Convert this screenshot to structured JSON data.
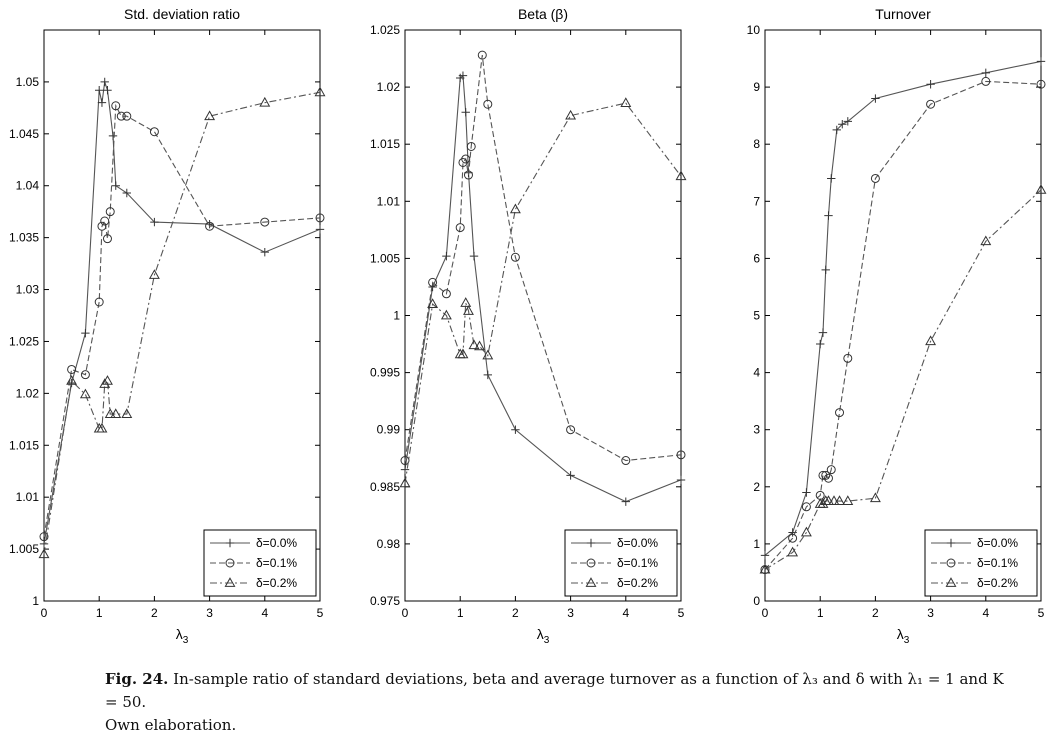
{
  "figure_label": "Fig. 24.",
  "caption_text": "In-sample ratio of standard deviations, beta and average turnover as a function of λ₃ and δ with λ₁ = 1 and K = 50.",
  "caption_note": "Own elaboration.",
  "chart_data": [
    {
      "type": "line",
      "title": "Std. deviation ratio",
      "xlabel": "λ3",
      "ylabel": "",
      "xlim": [
        0,
        5
      ],
      "ylim": [
        1,
        1.055
      ],
      "xticks": [
        0,
        1,
        2,
        3,
        4,
        5
      ],
      "xtick_labels": [
        "0",
        "1",
        "2",
        "3",
        "4",
        "5"
      ],
      "yticks": [
        1,
        1.005,
        1.01,
        1.015,
        1.02,
        1.025,
        1.03,
        1.035,
        1.04,
        1.045,
        1.05
      ],
      "ytick_labels": [
        "1",
        "1.005",
        "1.01",
        "1.015",
        "1.02",
        "1.025",
        "1.03",
        "1.035",
        "1.04",
        "1.045",
        "1.05"
      ],
      "grid": false,
      "legend_position": "bottom-right",
      "series": [
        {
          "name": "δ=0.0%",
          "style": "solid",
          "marker": "plus",
          "x": [
            0,
            0.5,
            0.75,
            1.0,
            1.05,
            1.1,
            1.15,
            1.25,
            1.3,
            1.5,
            2,
            3,
            4,
            5
          ],
          "y": [
            1.0055,
            1.021,
            1.0258,
            1.0492,
            1.048,
            1.05,
            1.0492,
            1.0448,
            1.04,
            1.0393,
            1.0365,
            1.0363,
            1.0336,
            1.0358
          ]
        },
        {
          "name": "δ=0.1%",
          "style": "dashed",
          "marker": "circle",
          "x": [
            0,
            0.5,
            0.75,
            1.0,
            1.05,
            1.1,
            1.15,
            1.2,
            1.3,
            1.4,
            1.5,
            2,
            3,
            4,
            5
          ],
          "y": [
            1.0062,
            1.0223,
            1.0218,
            1.0288,
            1.0361,
            1.0366,
            1.0349,
            1.0375,
            1.0477,
            1.0467,
            1.0467,
            1.0452,
            1.0361,
            1.0365,
            1.0369
          ]
        },
        {
          "name": "δ=0.2%",
          "style": "dashdot",
          "marker": "triangle",
          "x": [
            0,
            0.5,
            0.75,
            1.0,
            1.05,
            1.1,
            1.15,
            1.2,
            1.3,
            1.5,
            2,
            3,
            4,
            5
          ],
          "y": [
            1.0045,
            1.0212,
            1.0199,
            1.0166,
            1.0166,
            1.0209,
            1.0212,
            1.018,
            1.018,
            1.018,
            1.0314,
            1.0467,
            1.048,
            1.049
          ]
        }
      ]
    },
    {
      "type": "line",
      "title": "Beta (β)",
      "xlabel": "λ3",
      "ylabel": "",
      "xlim": [
        0,
        5
      ],
      "ylim": [
        0.975,
        1.025
      ],
      "xticks": [
        0,
        1,
        2,
        3,
        4,
        5
      ],
      "xtick_labels": [
        "0",
        "1",
        "2",
        "3",
        "4",
        "5"
      ],
      "yticks": [
        0.975,
        0.98,
        0.985,
        0.99,
        0.995,
        1,
        1.005,
        1.01,
        1.015,
        1.02,
        1.025
      ],
      "ytick_labels": [
        "0.975",
        "0.98",
        "0.985",
        "0.99",
        "0.995",
        "1",
        "1.005",
        "1.01",
        "1.015",
        "1.02",
        "1.025"
      ],
      "grid": false,
      "legend_position": "bottom-right",
      "series": [
        {
          "name": "δ=0.0%",
          "style": "solid",
          "marker": "plus",
          "x": [
            0,
            0.5,
            0.75,
            1.0,
            1.05,
            1.1,
            1.15,
            1.25,
            1.5,
            2,
            3,
            4,
            5
          ],
          "y": [
            0.9865,
            1.0025,
            1.0052,
            1.0208,
            1.021,
            1.0178,
            1.0125,
            1.0052,
            0.9948,
            0.99,
            0.986,
            0.9837,
            0.9856
          ]
        },
        {
          "name": "δ=0.1%",
          "style": "dashed",
          "marker": "circle",
          "x": [
            0,
            0.5,
            0.75,
            1.0,
            1.05,
            1.1,
            1.15,
            1.2,
            1.4,
            1.5,
            2,
            3,
            4,
            5
          ],
          "y": [
            0.9873,
            1.0029,
            1.0019,
            1.0077,
            1.0134,
            1.0137,
            1.0123,
            1.0148,
            1.0228,
            1.0185,
            1.0051,
            0.99,
            0.9873,
            0.9878
          ]
        },
        {
          "name": "δ=0.2%",
          "style": "dashdot",
          "marker": "triangle",
          "x": [
            0,
            0.5,
            0.75,
            1.0,
            1.05,
            1.1,
            1.15,
            1.25,
            1.35,
            1.5,
            2,
            3,
            4,
            5
          ],
          "y": [
            0.9853,
            1.001,
            1.0,
            0.9966,
            0.9966,
            1.0011,
            1.0004,
            0.9974,
            0.9973,
            0.9965,
            1.0093,
            1.0175,
            1.0186,
            1.0122
          ]
        }
      ]
    },
    {
      "type": "line",
      "title": "Turnover",
      "xlabel": "λ3",
      "ylabel": "",
      "xlim": [
        0,
        5
      ],
      "ylim": [
        0,
        10
      ],
      "xticks": [
        0,
        1,
        2,
        3,
        4,
        5
      ],
      "xtick_labels": [
        "0",
        "1",
        "2",
        "3",
        "4",
        "5"
      ],
      "yticks": [
        0,
        1,
        2,
        3,
        4,
        5,
        6,
        7,
        8,
        9,
        10
      ],
      "ytick_labels": [
        "0",
        "1",
        "2",
        "3",
        "4",
        "5",
        "6",
        "7",
        "8",
        "9",
        "10"
      ],
      "grid": false,
      "legend_position": "bottom-right",
      "series": [
        {
          "name": "δ=0.0%",
          "style": "solid",
          "marker": "plus",
          "x": [
            0,
            0.5,
            0.75,
            1.0,
            1.05,
            1.1,
            1.15,
            1.2,
            1.3,
            1.4,
            1.5,
            2,
            3,
            4,
            5
          ],
          "y": [
            0.8,
            1.2,
            1.9,
            4.5,
            4.7,
            5.8,
            6.75,
            7.4,
            8.25,
            8.35,
            8.4,
            8.8,
            9.05,
            9.25,
            9.45
          ]
        },
        {
          "name": "δ=0.1%",
          "style": "dashed",
          "marker": "circle",
          "x": [
            0,
            0.5,
            0.75,
            1.0,
            1.05,
            1.1,
            1.15,
            1.2,
            1.35,
            1.5,
            2,
            3,
            4,
            5
          ],
          "y": [
            0.55,
            1.1,
            1.65,
            1.85,
            2.2,
            2.2,
            2.15,
            2.3,
            3.3,
            4.25,
            7.4,
            8.7,
            9.1,
            9.05
          ]
        },
        {
          "name": "δ=0.2%",
          "style": "dashdot",
          "marker": "triangle",
          "x": [
            0,
            0.5,
            0.75,
            1.0,
            1.05,
            1.1,
            1.15,
            1.25,
            1.35,
            1.5,
            2,
            3,
            4,
            5
          ],
          "y": [
            0.55,
            0.85,
            1.2,
            1.7,
            1.7,
            1.75,
            1.75,
            1.75,
            1.75,
            1.75,
            1.8,
            4.55,
            6.3,
            7.2
          ]
        }
      ]
    }
  ]
}
